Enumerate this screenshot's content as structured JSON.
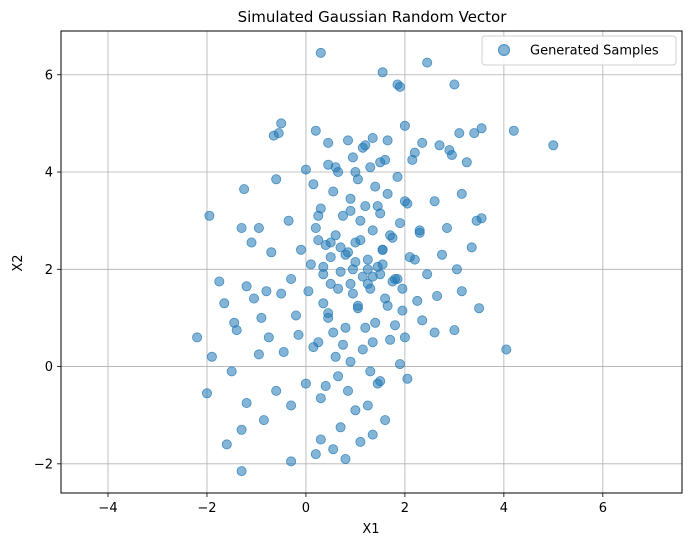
{
  "chart_data": {
    "type": "scatter",
    "title": "Simulated Gaussian Random Vector",
    "xlabel": "X1",
    "ylabel": "X2",
    "xlim": [
      -4.95,
      7.6
    ],
    "ylim": [
      -2.6,
      6.9
    ],
    "xticks": [
      -4,
      -2,
      0,
      2,
      4,
      6
    ],
    "yticks": [
      -2,
      0,
      2,
      4,
      6
    ],
    "xtick_labels": [
      "−4",
      "−2",
      "0",
      "2",
      "4",
      "6"
    ],
    "ytick_labels": [
      "−2",
      "0",
      "2",
      "4",
      "6"
    ],
    "grid": true,
    "legend": "top-right",
    "series": [
      {
        "name": "Generated Samples",
        "color": "#1f77b4",
        "marker": "circle",
        "alpha": 0.55,
        "x": [
          0.3,
          2.45,
          1.55,
          1.85,
          1.9,
          3.0,
          0.2,
          2.0,
          -0.55,
          1.35,
          2.9,
          3.1,
          3.55,
          4.2,
          5.0,
          -0.5,
          -0.65,
          0.45,
          0.85,
          1.2,
          1.65,
          2.35,
          2.7,
          3.4,
          -1.25,
          -0.6,
          0.0,
          0.6,
          1.0,
          1.5,
          2.15,
          2.95,
          3.25,
          -1.95,
          -1.3,
          -0.95,
          -0.35,
          0.25,
          0.9,
          1.45,
          2.05,
          2.6,
          3.15,
          3.55,
          -1.1,
          -0.7,
          -0.1,
          0.5,
          1.1,
          1.7,
          2.3,
          2.85,
          3.45,
          -1.75,
          -1.2,
          -0.8,
          -0.3,
          0.35,
          0.95,
          1.55,
          2.2,
          2.75,
          3.35,
          -1.65,
          -1.05,
          -0.5,
          0.05,
          0.65,
          1.25,
          1.85,
          2.45,
          3.05,
          3.5,
          -2.2,
          -1.45,
          -0.9,
          -0.2,
          0.45,
          1.05,
          1.65,
          2.25,
          2.65,
          3.15,
          4.05,
          -1.9,
          -1.4,
          -0.75,
          -0.15,
          0.55,
          1.2,
          1.8,
          2.35,
          3.0,
          -1.5,
          -0.95,
          -0.45,
          0.15,
          0.75,
          1.35,
          2.0,
          2.6,
          -2.0,
          -1.2,
          -0.6,
          0.0,
          0.65,
          1.3,
          1.9,
          -1.6,
          -1.3,
          -0.85,
          -0.3,
          0.3,
          0.85,
          1.45,
          2.05,
          -0.3,
          0.3,
          0.8,
          1.35,
          -1.3,
          0.55,
          0.2,
          1.1,
          1.6,
          0.7,
          1.0,
          0.4,
          1.25,
          0.9,
          1.5,
          0.6,
          1.15,
          0.25,
          1.7,
          0.8,
          1.4,
          0.45,
          1.95,
          1.05,
          0.35,
          1.6,
          0.95,
          1.3,
          0.5,
          1.8,
          1.15,
          0.7,
          1.45,
          0.1,
          1.25,
          2.1,
          0.85,
          1.55,
          0.4,
          1.0,
          1.75,
          0.6,
          1.35,
          0.2,
          1.9,
          1.1,
          0.75,
          1.5,
          0.3,
          1.2,
          2.0,
          0.9,
          1.65,
          0.55,
          1.4,
          0.15,
          1.05,
          1.85,
          0.65,
          1.3,
          0.45,
          1.6,
          0.95,
          2.2,
          1.15,
          0.35,
          1.5,
          0.8,
          1.75,
          0.25,
          1.0,
          1.95,
          0.7,
          1.35,
          0.5,
          1.25,
          2.3,
          0.9,
          1.55
        ],
        "y": [
          6.45,
          6.25,
          6.05,
          5.8,
          5.75,
          5.8,
          4.85,
          4.95,
          4.8,
          4.7,
          4.45,
          4.8,
          4.9,
          4.85,
          4.55,
          5.0,
          4.75,
          4.6,
          4.65,
          4.55,
          4.65,
          4.6,
          4.55,
          4.8,
          3.65,
          3.85,
          4.05,
          4.1,
          4.0,
          4.2,
          4.25,
          4.35,
          4.2,
          3.1,
          2.85,
          2.85,
          3.0,
          3.1,
          3.2,
          3.3,
          3.35,
          3.4,
          3.55,
          3.05,
          2.55,
          2.35,
          2.4,
          2.55,
          2.6,
          2.7,
          2.8,
          2.85,
          3.0,
          1.75,
          1.65,
          1.55,
          1.8,
          1.9,
          2.0,
          2.1,
          2.2,
          2.3,
          2.45,
          1.3,
          1.4,
          1.5,
          1.55,
          1.6,
          1.7,
          1.8,
          1.9,
          2.0,
          1.2,
          0.6,
          0.9,
          1.0,
          1.05,
          1.1,
          1.2,
          1.25,
          1.35,
          1.45,
          1.55,
          0.35,
          0.2,
          0.75,
          0.6,
          0.65,
          0.7,
          0.8,
          0.85,
          0.95,
          0.75,
          -0.1,
          0.25,
          0.3,
          0.4,
          0.45,
          0.5,
          0.6,
          0.7,
          -0.55,
          -0.75,
          -0.5,
          -0.35,
          -0.2,
          -0.1,
          0.05,
          -1.6,
          -1.3,
          -1.1,
          -0.8,
          -0.65,
          -0.5,
          -0.35,
          -0.25,
          -1.95,
          -1.5,
          -1.9,
          -1.4,
          -2.15,
          -1.7,
          -1.8,
          -1.55,
          -1.1,
          -1.25,
          -0.9,
          -0.4,
          -0.8,
          0.1,
          -0.3,
          0.2,
          0.35,
          0.5,
          0.55,
          0.8,
          0.9,
          1.0,
          1.15,
          1.25,
          1.3,
          1.4,
          1.5,
          1.6,
          1.7,
          1.8,
          1.85,
          1.95,
          2.05,
          2.1,
          2.2,
          2.25,
          2.35,
          2.4,
          2.5,
          2.55,
          2.65,
          2.7,
          2.8,
          2.85,
          2.95,
          3.0,
          3.1,
          3.15,
          3.25,
          3.3,
          3.4,
          3.45,
          3.55,
          3.6,
          3.7,
          3.75,
          3.85,
          3.9,
          4.0,
          4.1,
          4.15,
          4.25,
          4.3,
          4.4,
          4.5,
          2.05,
          1.9,
          2.3,
          1.75,
          2.6,
          2.15,
          1.6,
          2.45,
          1.85,
          2.25,
          2.0,
          2.75,
          1.7,
          2.4
        ]
      }
    ]
  }
}
